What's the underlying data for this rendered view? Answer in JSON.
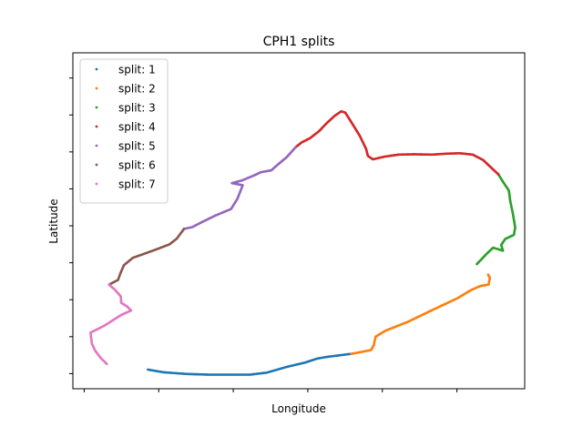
{
  "chart_data": {
    "type": "scatter",
    "title": "CPH1 splits",
    "xlabel": "Longitude",
    "ylabel": "Latitude",
    "xlim": [
      0,
      100
    ],
    "ylim": [
      0,
      100
    ],
    "x_ticks": [
      2.5,
      19,
      35.5,
      52,
      68.5,
      85
    ],
    "y_ticks": [
      4.5,
      15.5,
      26.5,
      37.5,
      48.5,
      59.5,
      70.5,
      81.5,
      92.5
    ],
    "grid": false,
    "legend_position": "top-left",
    "series": [
      {
        "name": "split: 1",
        "color": "#1f77b4",
        "points": [
          [
            16.6,
            5.7
          ],
          [
            20.1,
            4.9
          ],
          [
            25.3,
            4.4
          ],
          [
            30.0,
            4.2
          ],
          [
            35.5,
            4.2
          ],
          [
            39.2,
            4.2
          ],
          [
            42.9,
            4.8
          ],
          [
            47.3,
            6.5
          ],
          [
            51.4,
            7.8
          ],
          [
            54.1,
            9.0
          ],
          [
            56.3,
            9.5
          ],
          [
            61.6,
            10.4
          ]
        ]
      },
      {
        "name": "split: 2",
        "color": "#ff7f0e",
        "points": [
          [
            61.6,
            10.4
          ],
          [
            66.0,
            11.5
          ],
          [
            66.6,
            13.0
          ],
          [
            67.0,
            15.5
          ],
          [
            69.2,
            17.3
          ],
          [
            74.1,
            19.9
          ],
          [
            79.5,
            23.4
          ],
          [
            85.2,
            27.0
          ],
          [
            88.0,
            29.3
          ],
          [
            90.2,
            30.6
          ],
          [
            92.0,
            31.0
          ],
          [
            92.3,
            33.0
          ],
          [
            91.9,
            34.0
          ]
        ]
      },
      {
        "name": "split: 3",
        "color": "#2ca02c",
        "points": [
          [
            89.4,
            37.1
          ],
          [
            91.6,
            40.2
          ],
          [
            93.0,
            42.0
          ],
          [
            95.2,
            41.1
          ],
          [
            94.8,
            42.8
          ],
          [
            95.7,
            44.6
          ],
          [
            97.6,
            45.8
          ],
          [
            97.9,
            48.0
          ],
          [
            97.4,
            52.0
          ],
          [
            96.8,
            55.9
          ],
          [
            96.5,
            59.0
          ],
          [
            95.0,
            62.0
          ],
          [
            94.2,
            63.8
          ]
        ]
      },
      {
        "name": "split: 4",
        "color": "#d62728",
        "points": [
          [
            94.2,
            63.8
          ],
          [
            93.0,
            65.3
          ],
          [
            90.8,
            68.1
          ],
          [
            88.5,
            69.7
          ],
          [
            85.7,
            70.1
          ],
          [
            82.9,
            70.0
          ],
          [
            79.5,
            69.7
          ],
          [
            75.5,
            69.8
          ],
          [
            72.1,
            69.7
          ],
          [
            69.0,
            69.1
          ],
          [
            66.4,
            68.3
          ],
          [
            65.3,
            69.3
          ],
          [
            64.9,
            71.4
          ],
          [
            63.5,
            75.3
          ],
          [
            61.8,
            79.0
          ],
          [
            60.3,
            82.2
          ],
          [
            59.4,
            82.6
          ],
          [
            57.9,
            81.2
          ],
          [
            56.2,
            79.1
          ],
          [
            54.5,
            76.7
          ],
          [
            52.5,
            74.6
          ],
          [
            50.6,
            73.3
          ],
          [
            49.3,
            71.9
          ]
        ]
      },
      {
        "name": "split: 5",
        "color": "#9467bd",
        "points": [
          [
            49.3,
            71.9
          ],
          [
            47.3,
            68.9
          ],
          [
            45.5,
            66.9
          ],
          [
            43.9,
            65.0
          ],
          [
            41.7,
            64.5
          ],
          [
            39.9,
            63.4
          ],
          [
            37.4,
            62.0
          ],
          [
            35.2,
            61.2
          ],
          [
            37.6,
            60.6
          ],
          [
            36.4,
            56.5
          ],
          [
            35.0,
            53.5
          ],
          [
            31.6,
            51.6
          ],
          [
            28.4,
            49.5
          ],
          [
            26.4,
            48.1
          ],
          [
            24.6,
            47.6
          ]
        ]
      },
      {
        "name": "split: 6",
        "color": "#8c564b",
        "points": [
          [
            24.6,
            47.6
          ],
          [
            23.0,
            44.7
          ],
          [
            21.4,
            43.0
          ],
          [
            18.1,
            41.3
          ],
          [
            15.2,
            39.9
          ],
          [
            13.3,
            39.0
          ],
          [
            11.3,
            36.8
          ],
          [
            10.5,
            34.3
          ],
          [
            10.0,
            32.4
          ],
          [
            8.0,
            31.0
          ]
        ]
      },
      {
        "name": "split: 7",
        "color": "#e377c2",
        "points": [
          [
            8.0,
            31.0
          ],
          [
            9.3,
            29.5
          ],
          [
            10.6,
            27.5
          ],
          [
            10.7,
            25.6
          ],
          [
            12.0,
            24.5
          ],
          [
            12.9,
            23.3
          ],
          [
            10.6,
            21.9
          ],
          [
            7.0,
            18.8
          ],
          [
            3.9,
            16.7
          ],
          [
            4.2,
            13.5
          ],
          [
            4.9,
            11.4
          ],
          [
            6.2,
            9.1
          ],
          [
            7.5,
            7.4
          ]
        ]
      }
    ]
  }
}
